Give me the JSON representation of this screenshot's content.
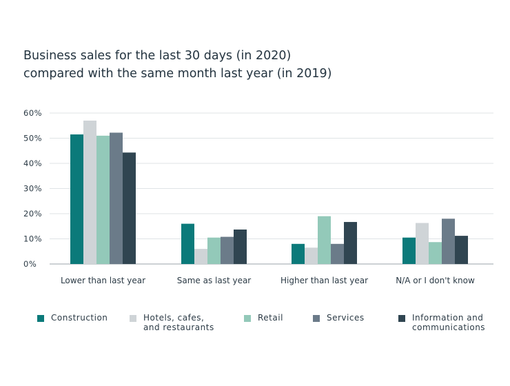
{
  "chart_data": {
    "type": "bar",
    "title_lines": [
      "Business sales for the last 30 days (in 2020)",
      "compared with the same month last year (in 2019)"
    ],
    "categories": [
      "Lower than last year",
      "Same as last year",
      "Higher than last year",
      "N/A or I don't know"
    ],
    "series": [
      {
        "name": "Construction",
        "legend_lines": [
          "Construction"
        ],
        "color": "#0b7a7a",
        "values": [
          51.5,
          16,
          8,
          10.5
        ]
      },
      {
        "name": "Hotels, cafes, and restaurants",
        "legend_lines": [
          "Hotels, cafes,",
          "and restaurants"
        ],
        "color": "#cfd4d7",
        "values": [
          57,
          6,
          6.5,
          16.3
        ]
      },
      {
        "name": "Retail",
        "legend_lines": [
          "Retail"
        ],
        "color": "#93c9b9",
        "values": [
          51,
          10.5,
          19,
          8.7
        ]
      },
      {
        "name": "Services",
        "legend_lines": [
          "Services"
        ],
        "color": "#6b7b89",
        "values": [
          52.2,
          10.8,
          8,
          18
        ]
      },
      {
        "name": "Information and communications",
        "legend_lines": [
          "Information and",
          "communications"
        ],
        "color": "#304551",
        "values": [
          44.3,
          13.7,
          16.7,
          11.2
        ]
      }
    ],
    "y_ticks": [
      "0%",
      "10%",
      "20%",
      "30%",
      "40%",
      "50%",
      "60%"
    ],
    "ylim": [
      0,
      60
    ],
    "grid": true,
    "legend_position": "bottom",
    "xlabel": "",
    "ylabel": ""
  }
}
